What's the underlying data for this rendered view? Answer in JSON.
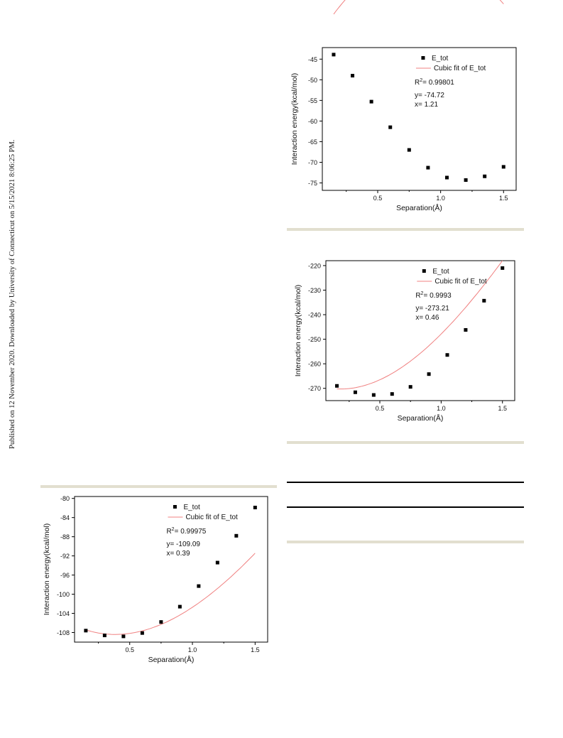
{
  "margin_note": "Published on 12 November 2020. Downloaded by University of Connecticut on 5/15/2021 8:06:25 PM.",
  "colors": {
    "fit_line": "#f08080",
    "marker": "#000000",
    "rule_beige": "#e2dfcf"
  },
  "charts": [
    {
      "type": "scatter",
      "x": [
        0.15,
        0.3,
        0.45,
        0.6,
        0.75,
        0.9,
        1.05,
        1.2,
        1.35,
        1.5
      ],
      "y": [
        -43.9,
        -49.0,
        -55.3,
        -61.5,
        -67.0,
        -71.3,
        -73.7,
        -74.3,
        -73.4,
        -71.1
      ],
      "fit": {
        "a": 0.8433,
        "b": -30.22,
        "c": 49.58,
        "d": -40.86,
        "x_start": 0.15,
        "x_end": 1.5
      },
      "xlabel": "Separation(Å)",
      "ylabel": "Interaction energy(kcal/mol)",
      "xlim": [
        0.06,
        1.6
      ],
      "ylim": [
        -76.8,
        -42.2
      ],
      "xticks": [
        0.5,
        1.0,
        1.5
      ],
      "xtick_labels": [
        "0.5",
        "1.0",
        "1.5"
      ],
      "yticks": [
        -45,
        -50,
        -55,
        -60,
        -65,
        -70,
        -75
      ],
      "ytick_labels": [
        "-45",
        "-50",
        "-55",
        "-60",
        "-65",
        "-70",
        "-75"
      ],
      "legend": {
        "marker_label": "E_tot",
        "line_label": "Cubic fit of E_tot"
      },
      "annotations": {
        "r2_prefix": "R",
        "r2_sup": "2",
        "r2_value": "= 0.99801",
        "y_line": "y= -74.72",
        "x_line": "x= 1.21"
      }
    },
    {
      "type": "scatter",
      "x": [
        0.15,
        0.3,
        0.45,
        0.6,
        0.75,
        0.9,
        1.05,
        1.2,
        1.35,
        1.5
      ],
      "y": [
        -269.0,
        -271.6,
        -272.7,
        -272.3,
        -269.4,
        -264.2,
        -256.4,
        -246.2,
        -234.3,
        -221.0
      ],
      "fit": {
        "a": -6.6,
        "b": 42.27,
        "c": -14.56,
        "d": -268.98,
        "x_start": 0.15,
        "x_end": 1.5
      },
      "xlabel": "Separation(Å)",
      "ylabel": "Interaction energy(kcal/mol)",
      "xlim": [
        0.06,
        1.6
      ],
      "ylim": [
        -275.0,
        -218.0
      ],
      "xticks": [
        0.5,
        1.0,
        1.5
      ],
      "xtick_labels": [
        "0.5",
        "1.0",
        "1.5"
      ],
      "yticks": [
        -220,
        -230,
        -240,
        -250,
        -260,
        -270
      ],
      "ytick_labels": [
        "-220",
        "-230",
        "-240",
        "-250",
        "-260",
        "-270"
      ],
      "legend": {
        "marker_label": "E_tot",
        "line_label": "Cubic fit of E_tot"
      },
      "annotations": {
        "r2_prefix": "R",
        "r2_sup": "2",
        "r2_value": "= 0.9993",
        "y_line": "y= -273.21",
        "x_line": "x= 0.46"
      }
    },
    {
      "type": "scatter",
      "x": [
        0.15,
        0.3,
        0.45,
        0.6,
        0.75,
        0.9,
        1.05,
        1.2,
        1.35,
        1.5
      ],
      "y": [
        -107.6,
        -108.6,
        -108.8,
        -108.1,
        -105.8,
        -102.6,
        -98.3,
        -93.4,
        -87.8,
        -81.9
      ],
      "fit": {
        "a": -2.64,
        "b": 19.61,
        "c": -13.9,
        "d": -105.8,
        "x_start": 0.15,
        "x_end": 1.5
      },
      "xlabel": "Separation(Å)",
      "ylabel": "Interaction energy(kcal/mol)",
      "xlim": [
        0.06,
        1.6
      ],
      "ylim": [
        -110.0,
        -79.6
      ],
      "xticks": [
        0.5,
        1.0,
        1.5
      ],
      "xtick_labels": [
        "0.5",
        "1.0",
        "1.5"
      ],
      "yticks": [
        -80,
        -84,
        -88,
        -92,
        -96,
        -100,
        -104,
        -108
      ],
      "ytick_labels": [
        "-80",
        "-84",
        "-88",
        "-92",
        "-96",
        "-100",
        "-104",
        "-108"
      ],
      "legend": {
        "marker_label": "E_tot",
        "line_label": "Cubic fit of E_tot"
      },
      "annotations": {
        "r2_prefix": "R",
        "r2_sup": "2",
        "r2_value": "= 0.99975",
        "y_line": "y= -109.09",
        "x_line": "x= 0.39"
      }
    }
  ]
}
